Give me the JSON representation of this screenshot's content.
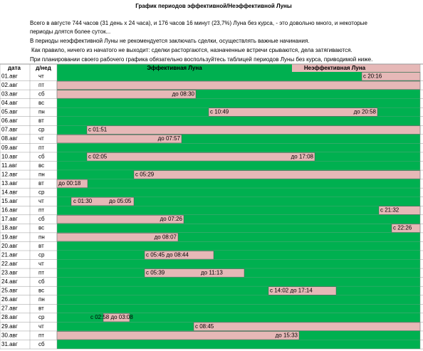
{
  "title": "График  периодов эффективной/Неэффективной Луны",
  "notes": [
    "Всего в августе 744 часов (31 день х 24 часа), и 176 часов 16 минут (23,7%) Луна без курса, - это довольно много,  и некоторые",
    "периоды длятся более суток...",
    "В периоды неэффективной Луны не рекомендуется заключать сделки, осуществлять важные начинания.",
    "Как правило, ничего из начатого не выходит: сделки расторгаются, назначенные встречи срываются, дела затягиваются.",
    "При планировании своего рабочего графика обязательно воспользуйтесь таблицей периодов Луны без курса, приводимой ниже."
  ],
  "table": {
    "header": [
      "дата",
      "д/нед",
      "Эффективная Луна",
      "Неэффективная Луна"
    ],
    "rows": [
      {
        "date": "01.авг",
        "day": "чт",
        "labels": [
          "с 20:16"
        ]
      },
      {
        "date": "02.авг",
        "day": "пт",
        "labels": []
      },
      {
        "date": "03.авг",
        "day": "сб",
        "labels": [
          "до  08:30"
        ]
      },
      {
        "date": "04.авг",
        "day": "вс",
        "labels": []
      },
      {
        "date": "05.авг",
        "day": "пн",
        "labels": [
          "с 10:49",
          "до 20:58"
        ]
      },
      {
        "date": "06.авг",
        "day": "вт",
        "labels": []
      },
      {
        "date": "07.авг",
        "day": "ср",
        "labels": [
          "с 01:51"
        ]
      },
      {
        "date": "08.авг",
        "day": "чт",
        "labels": [
          "до  07:57"
        ]
      },
      {
        "date": "09.авг",
        "day": "пт",
        "labels": []
      },
      {
        "date": "10.авг",
        "day": "сб",
        "labels": [
          "с  02:05",
          "до  17:08"
        ]
      },
      {
        "date": "11.авг",
        "day": "вс",
        "labels": []
      },
      {
        "date": "12.авг",
        "day": "пн",
        "labels": [
          "с 05:29"
        ]
      },
      {
        "date": "13.авг",
        "day": "вт",
        "labels": [
          "до 00:18"
        ]
      },
      {
        "date": "14.авг",
        "day": "ср",
        "labels": []
      },
      {
        "date": "15.авг",
        "day": "чт",
        "labels": [
          "с 01:30",
          "до 05:05"
        ]
      },
      {
        "date": "16.авг",
        "day": "пт",
        "labels": [
          "с 21:32"
        ]
      },
      {
        "date": "17.авг",
        "day": "сб",
        "labels": [
          "до  07:26"
        ]
      },
      {
        "date": "18.авг",
        "day": "вс",
        "labels": [
          "с 22:26"
        ]
      },
      {
        "date": "19.авг",
        "day": "пн",
        "labels": [
          "до 08:07"
        ]
      },
      {
        "date": "20.авг",
        "day": "вт",
        "labels": []
      },
      {
        "date": "21.авг",
        "day": "ср",
        "labels": [
          "с 05:45 до 08:44"
        ]
      },
      {
        "date": "22.авг",
        "day": "чт",
        "labels": []
      },
      {
        "date": "23.авг",
        "day": "пт",
        "labels": [
          "с 05:39",
          "до 11:13"
        ]
      },
      {
        "date": "24.авг",
        "day": "сб",
        "labels": []
      },
      {
        "date": "25.авг",
        "day": "вс",
        "labels": [
          "с 14:02 до 17:14"
        ]
      },
      {
        "date": "26.авг",
        "day": "пн",
        "labels": []
      },
      {
        "date": "27.авг",
        "day": "вт",
        "labels": []
      },
      {
        "date": "28.авг",
        "day": "ср",
        "labels": [
          "с 02:58 до 03:08"
        ]
      },
      {
        "date": "29.авг",
        "day": "чт",
        "labels": [
          "с 08:45"
        ]
      },
      {
        "date": "30.авг",
        "day": "пт",
        "labels": [
          "до 15:33"
        ]
      },
      {
        "date": "31.авг",
        "day": "сб",
        "labels": []
      }
    ]
  }
}
